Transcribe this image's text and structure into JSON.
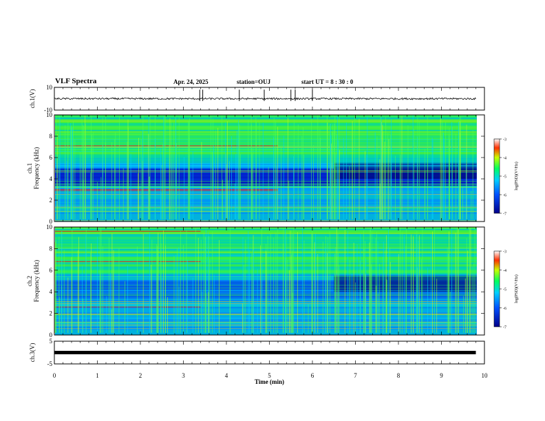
{
  "header": {
    "title": "VLF Spectra",
    "date": "Apr. 24, 2025",
    "station": "station=OUJ",
    "start": "start  UT  =   8  : 30 : 0"
  },
  "colors": {
    "background": "#ffffff",
    "spectrogram_low": "#00008b",
    "spectrogram_mid": "#00c8ff",
    "spectrogram_high": "#ff0000"
  },
  "chart_data": [
    {
      "type": "line",
      "id": "ch1-waveform",
      "ylabel": "ch.1(V)",
      "ylim": [
        -10,
        10
      ],
      "yticks": [
        "10",
        "-10"
      ],
      "xlim": [
        0,
        10
      ],
      "series": [
        {
          "x": [
            0,
            9.8
          ],
          "y": [
            0,
            0
          ]
        }
      ]
    },
    {
      "type": "heatmap",
      "id": "ch1-spectrogram",
      "ylabel": [
        "ch.1",
        "Frequency  (kHz)"
      ],
      "ylim": [
        0,
        10
      ],
      "yticks": [
        "0",
        "2",
        "4",
        "6",
        "8",
        "10"
      ],
      "xlim": [
        0,
        10
      ],
      "colorbar": {
        "label": "log(PSD)(V²/Hz)",
        "range": [
          -7,
          -3
        ],
        "ticks": [
          "-3",
          "-4",
          "-5",
          "-6",
          "-7"
        ]
      }
    },
    {
      "type": "heatmap",
      "id": "ch2-spectrogram",
      "ylabel": [
        "ch.2",
        "Frequency  (kHz)"
      ],
      "ylim": [
        0,
        10
      ],
      "yticks": [
        "0",
        "2",
        "4",
        "6",
        "8",
        "10"
      ],
      "xlim": [
        0,
        10
      ],
      "colorbar": {
        "label": "log(PSD)(V²/Hz)",
        "range": [
          -7,
          -3
        ],
        "ticks": [
          "-3",
          "-4",
          "-5",
          "-6",
          "-7"
        ]
      }
    },
    {
      "type": "line",
      "id": "ch3-waveform",
      "ylabel": "ch.3(V)",
      "ylim": [
        -5,
        5
      ],
      "yticks": [
        "5",
        "-5"
      ],
      "xlim": [
        0,
        10
      ],
      "xlabel": "Time  (min)",
      "xticks": [
        "0",
        "1",
        "2",
        "3",
        "4",
        "5",
        "6",
        "7",
        "8",
        "9",
        "10"
      ],
      "series": [
        {
          "x": [
            0,
            9.8
          ],
          "y": [
            0,
            0
          ]
        }
      ]
    }
  ]
}
